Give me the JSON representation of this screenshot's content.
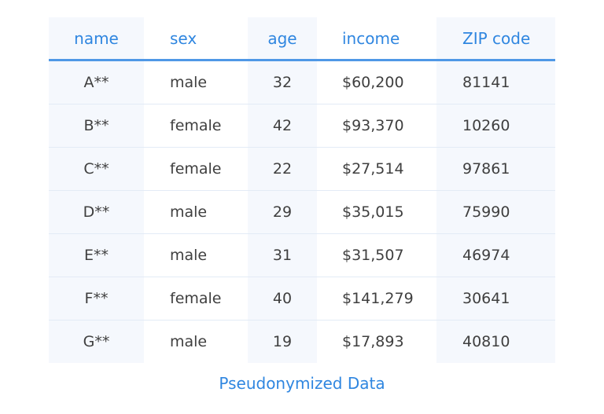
{
  "table": {
    "headers": {
      "name": "name",
      "sex": "sex",
      "age": "age",
      "income": "income",
      "zip": "ZIP code"
    },
    "rows": [
      {
        "name": "A**",
        "sex": "male",
        "age": "32",
        "income": "$60,200",
        "zip": "81141"
      },
      {
        "name": "B**",
        "sex": "female",
        "age": "42",
        "income": "$93,370",
        "zip": "10260"
      },
      {
        "name": "C**",
        "sex": "female",
        "age": "22",
        "income": "$27,514",
        "zip": "97861"
      },
      {
        "name": "D**",
        "sex": "male",
        "age": "29",
        "income": "$35,015",
        "zip": "75990"
      },
      {
        "name": "E**",
        "sex": "male",
        "age": "31",
        "income": "$31,507",
        "zip": "46974"
      },
      {
        "name": "F**",
        "sex": "female",
        "age": "40",
        "income": "$141,279",
        "zip": "30641"
      },
      {
        "name": "G**",
        "sex": "male",
        "age": "19",
        "income": "$17,893",
        "zip": "40810"
      }
    ]
  },
  "caption": "Pseudonymized Data",
  "colors": {
    "accent": "#2f86e0",
    "shade": "#f5f8fd",
    "text": "#3f3f3f"
  }
}
